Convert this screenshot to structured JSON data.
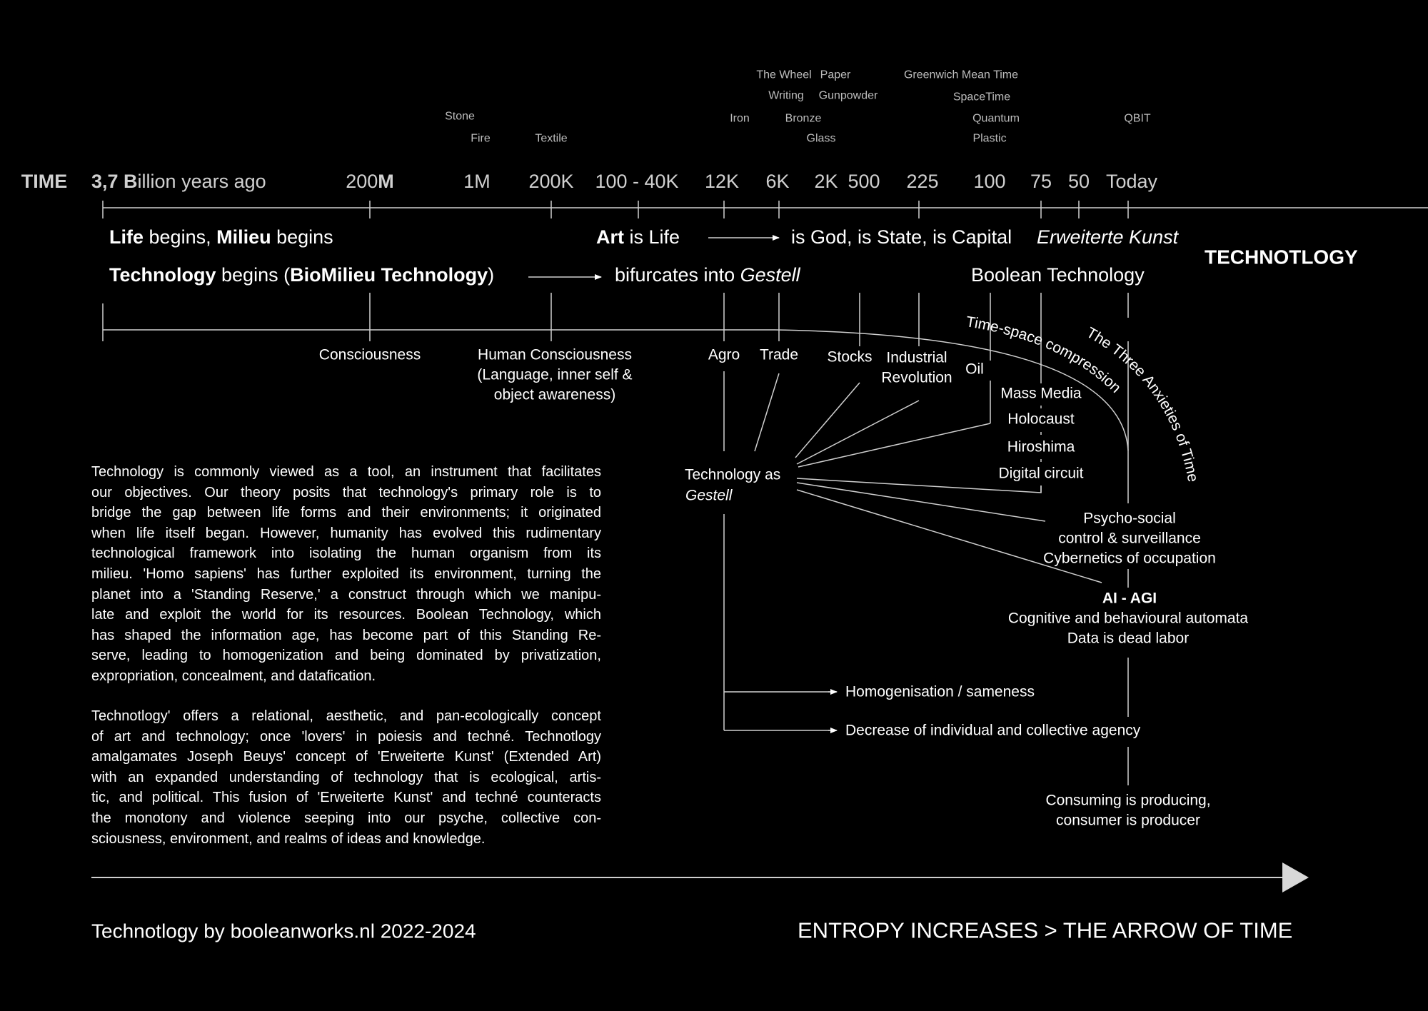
{
  "inventions": {
    "the_wheel": "The Wheel",
    "paper": "Paper",
    "writing": "Writing",
    "gunpowder": "Gunpowder",
    "stone": "Stone",
    "iron": "Iron",
    "bronze": "Bronze",
    "quantum": "Quantum",
    "qbit": "QBIT",
    "fire": "Fire",
    "textile": "Textile",
    "glass": "Glass",
    "plastic": "Plastic",
    "gmt": "Greenwich Mean Time",
    "spacetime": "SpaceTime"
  },
  "scale": {
    "time": "TIME",
    "start_bold1": "3,7 B",
    "start_rest": "illion years ago",
    "m200": "200",
    "m200_bold": "M",
    "labels": [
      "1M",
      "200K",
      "100 - 40K",
      "12K",
      "6K",
      "2K",
      "500",
      "225",
      "100",
      "75",
      "50",
      "Today"
    ]
  },
  "row1": {
    "life": "Life",
    "begins1": " begins, ",
    "milieu": "Milieu",
    "begins2": " begins",
    "art": "Art",
    "is_life": " is Life",
    "god": "is God, is State, is Capital",
    "erweiterte": "Erweiterte Kunst"
  },
  "row2": {
    "technology": "Technology",
    "begins": " begins (",
    "biomilieu": "BioMilieu Technology",
    "close": ")",
    "bifurcates": "bifurcates into ",
    "gestell": "Gestell",
    "boolean": "Boolean Technology"
  },
  "brand": "TECHNOTLOGY",
  "events": {
    "consciousness": "Consciousness",
    "human_consciousness": [
      "Human Consciousness",
      "(Language, inner self &",
      "object awareness)"
    ],
    "agro": "Agro",
    "trade": "Trade",
    "stocks": "Stocks",
    "industrial": [
      "Industrial",
      "Revolution"
    ],
    "oil": "Oil",
    "mass_media": "Mass Media",
    "holocaust": "Holocaust",
    "hiroshima": "Hiroshima",
    "digital": "Digital circuit",
    "time_space": "Time-space compression",
    "three_anxieties": "The Three Anxieties of Time",
    "tech_as": "Technology as",
    "tech_gestell": "Gestell",
    "psycho": [
      "Psycho-social",
      "control & surveillance",
      "Cybernetics of occupation"
    ],
    "ai": "AI - AGI",
    "ai_lines": [
      "Cognitive and behavioural automata",
      "Data is dead labor"
    ],
    "homogenisation": "Homogenisation / sameness",
    "decrease": "Decrease of individual and collective agency",
    "consuming": [
      "Consuming is producing,",
      "consumer is producer"
    ]
  },
  "paragraph1": [
    "Technology is commonly viewed as a tool, an instrument that facilitates",
    "our objectives. Our theory posits that technology's primary role is to",
    "bridge the gap between life forms and their environments; it originated",
    "when life itself began. However, humanity has evolved this rudimentary",
    "technological framework into isolating the human organism from its",
    "milieu. 'Homo sapiens' has further exploited its environment, turning the",
    "planet into a 'Standing Reserve,' a construct through which we manipu-",
    "late and exploit the world for its resources. Boolean Technology, which",
    "has shaped the information age, has become part of this Standing Re-",
    "serve, leading to homogenization and being dominated by privatization,",
    "expropriation, concealment, and datafication."
  ],
  "paragraph2": [
    "Technotlogy' offers a relational, aesthetic, and pan-ecologically concept",
    "of art and technology; once 'lovers' in poiesis and techné. Technotlogy",
    "amalgamates Joseph Beuys' concept of 'Erweiterte Kunst' (Extended Art)",
    "with an expanded understanding of technology that is ecological, artis-",
    "tic, and political. This fusion of 'Erweiterte Kunst' and techné counteracts",
    "the monotony and violence seeping into our psyche, collective con-",
    "sciousness, environment, and realms of ideas and knowledge."
  ],
  "footer": {
    "credit": "Technotlogy by booleanworks.nl 2022-2024",
    "entropy": "ENTROPY INCREASES > THE ARROW OF TIME"
  },
  "colors": {
    "background": "#000000",
    "text": "#ffffff",
    "muted": "#bdbdbd",
    "lines": "#cfcfcf"
  }
}
